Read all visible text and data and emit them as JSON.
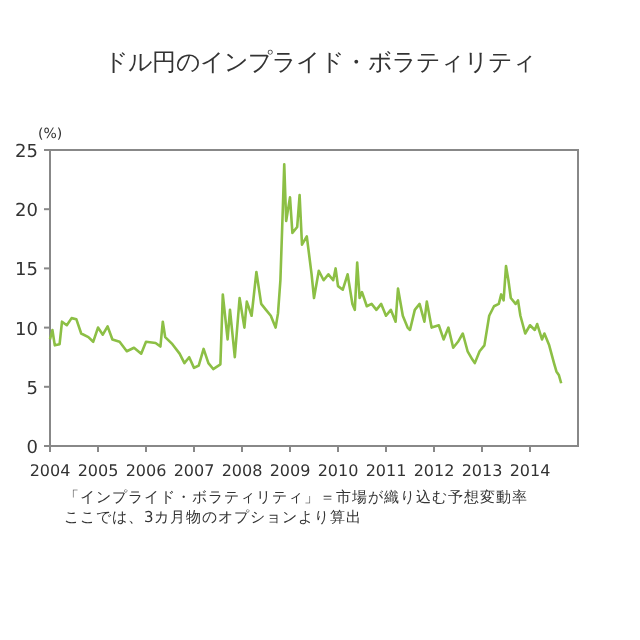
{
  "chart_data": {
    "type": "line",
    "title": "ドル円のインプライド・ボラティリティ",
    "ylabel": "(%)",
    "xlim": [
      2004,
      2015
    ],
    "xticks": [
      2004,
      2005,
      2006,
      2007,
      2008,
      2009,
      2010,
      2011,
      2012,
      2013,
      2014
    ],
    "ylim": [
      0,
      25
    ],
    "yticks": [
      0,
      5,
      10,
      15,
      20,
      25
    ],
    "grid": false,
    "marker": "none",
    "line_style": "solid",
    "annotations": [
      "「インプライド・ボラティリティ」＝市場が織り込む予想変動率",
      "ここでは、3カ月物のオプションより算出"
    ],
    "series": [
      {
        "color": "#8cbf45",
        "x": [
          2004.0,
          2004.05,
          2004.1,
          2004.2,
          2004.25,
          2004.35,
          2004.45,
          2004.55,
          2004.65,
          2004.8,
          2004.9,
          2005.0,
          2005.1,
          2005.2,
          2005.3,
          2005.45,
          2005.6,
          2005.75,
          2005.9,
          2006.0,
          2006.2,
          2006.3,
          2006.35,
          2006.4,
          2006.55,
          2006.7,
          2006.8,
          2006.9,
          2007.0,
          2007.1,
          2007.2,
          2007.3,
          2007.4,
          2007.55,
          2007.6,
          2007.7,
          2007.75,
          2007.85,
          2007.95,
          2008.05,
          2008.1,
          2008.2,
          2008.3,
          2008.4,
          2008.5,
          2008.6,
          2008.7,
          2008.75,
          2008.8,
          2008.85,
          2008.88,
          2008.92,
          2009.0,
          2009.05,
          2009.15,
          2009.2,
          2009.25,
          2009.35,
          2009.45,
          2009.5,
          2009.6,
          2009.7,
          2009.8,
          2009.9,
          2009.95,
          2010.0,
          2010.1,
          2010.2,
          2010.3,
          2010.35,
          2010.4,
          2010.45,
          2010.5,
          2010.6,
          2010.7,
          2010.8,
          2010.9,
          2011.0,
          2011.1,
          2011.2,
          2011.25,
          2011.35,
          2011.45,
          2011.5,
          2011.6,
          2011.7,
          2011.8,
          2011.85,
          2011.95,
          2012.1,
          2012.2,
          2012.3,
          2012.4,
          2012.5,
          2012.6,
          2012.7,
          2012.8,
          2012.85,
          2012.95,
          2013.05,
          2013.15,
          2013.25,
          2013.35,
          2013.4,
          2013.45,
          2013.5,
          2013.55,
          2013.6,
          2013.7,
          2013.75,
          2013.8,
          2013.9,
          2014.0,
          2014.1,
          2014.15,
          2014.25,
          2014.3,
          2014.4,
          2014.5,
          2014.55,
          2014.6,
          2014.65
        ],
        "values": [
          9.0,
          9.8,
          8.5,
          8.6,
          10.5,
          10.2,
          10.8,
          10.7,
          9.5,
          9.2,
          8.8,
          10.0,
          9.4,
          10.1,
          9.0,
          8.8,
          8.0,
          8.3,
          7.8,
          8.8,
          8.7,
          8.4,
          10.5,
          9.2,
          8.6,
          7.8,
          7.0,
          7.5,
          6.6,
          6.8,
          8.2,
          7.0,
          6.5,
          6.9,
          12.8,
          9.0,
          11.5,
          7.5,
          12.5,
          10.0,
          12.2,
          11.0,
          14.7,
          12.0,
          11.5,
          11.0,
          10.0,
          11.2,
          14.0,
          20.0,
          23.8,
          19.0,
          21.0,
          18.0,
          18.5,
          21.2,
          17.0,
          17.7,
          14.5,
          12.5,
          14.8,
          14.0,
          14.5,
          14.0,
          15.0,
          13.5,
          13.2,
          14.5,
          12.0,
          11.5,
          15.5,
          12.5,
          13.0,
          11.8,
          12.0,
          11.5,
          12.0,
          11.0,
          11.5,
          10.5,
          13.3,
          11.0,
          10.0,
          9.8,
          11.5,
          12.0,
          10.5,
          12.2,
          10.0,
          10.2,
          9.0,
          10.0,
          8.3,
          8.8,
          9.5,
          8.0,
          7.3,
          7.0,
          8.0,
          8.5,
          11.0,
          11.8,
          12.0,
          12.8,
          12.3,
          15.2,
          14.0,
          12.5,
          12.0,
          12.3,
          11.0,
          9.5,
          10.2,
          9.8,
          10.3,
          9.0,
          9.5,
          8.5,
          7.0,
          6.3,
          6.0,
          5.3
        ]
      }
    ]
  }
}
